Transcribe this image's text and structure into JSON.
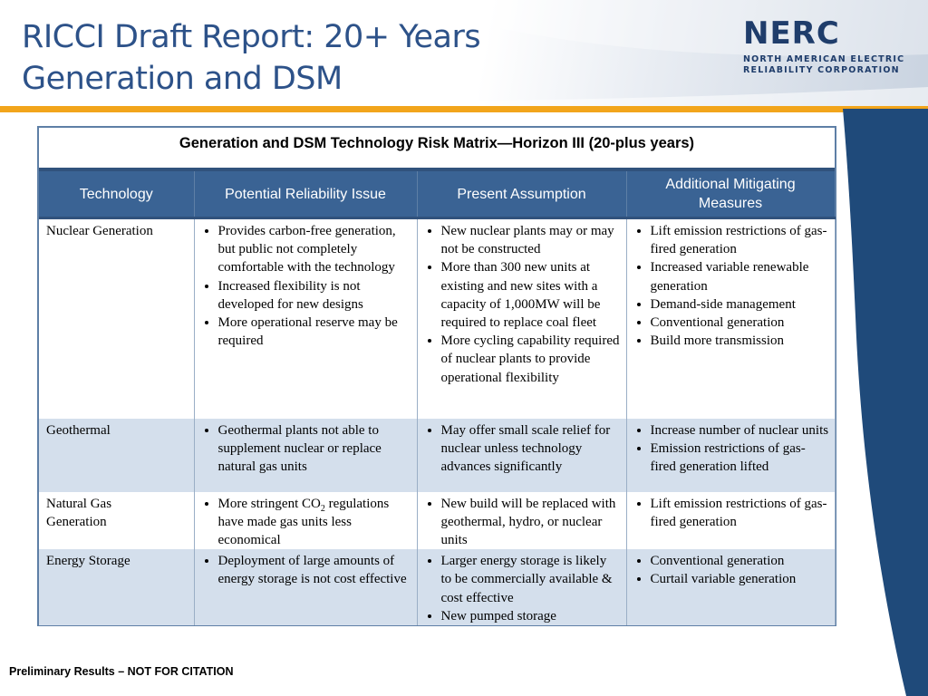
{
  "header": {
    "title_line1": "RICCI Draft Report: 20+ Years",
    "title_line2": "Generation and DSM",
    "logo_word": "NERC",
    "logo_line1": "NORTH AMERICAN ELECTRIC",
    "logo_line2": "RELIABILITY CORPORATION"
  },
  "colors": {
    "title": "#2d5289",
    "accent": "#f2a51b",
    "table_header": "#3a6394",
    "row_shade": "#d4dfec"
  },
  "matrix": {
    "title": "Generation and DSM Technology Risk Matrix—Horizon III (20-plus years)",
    "headers": [
      "Technology",
      "Potential Reliability Issue",
      "Present Assumption",
      "Additional Mitigating Measures"
    ],
    "rows": [
      {
        "technology": "Nuclear Generation",
        "issues": [
          "Provides carbon-free generation, but public not completely comfortable with the technology",
          "Increased flexibility is not developed for new designs",
          "More operational reserve may be required"
        ],
        "assumptions": [
          "New nuclear plants may or may not be constructed",
          "More than 300 new units at existing and new sites with a capacity of 1,000MW will be required to replace coal fleet",
          "More cycling capability required of nuclear plants to provide operational flexibility"
        ],
        "measures": [
          "Lift emission restrictions of gas-fired generation",
          "Increased variable renewable generation",
          "Demand-side management",
          "Conventional generation",
          "Build more transmission"
        ]
      },
      {
        "technology": "Geothermal",
        "issues": [
          "Geothermal plants not able to supplement nuclear or replace natural gas units"
        ],
        "assumptions": [
          "May offer small scale relief for nuclear unless technology advances significantly"
        ],
        "measures": [
          "Increase number of nuclear units",
          "Emission restrictions of gas-fired generation lifted"
        ]
      },
      {
        "technology_line1": "Natural Gas",
        "technology_line2": "Generation",
        "issue_prefix": "More stringent CO",
        "issue_subscript": "2",
        "issue_suffix": " regulations have made gas units less economical",
        "assumptions": [
          "New build will be replaced with geothermal, hydro, or nuclear units"
        ],
        "measures": [
          "Lift emission restrictions of gas-fired generation"
        ]
      },
      {
        "technology": "Energy Storage",
        "issues": [
          "Deployment of large amounts of energy storage is not cost effective"
        ],
        "assumptions": [
          "Larger energy storage is likely to be commercially available & cost effective",
          "New pumped storage"
        ],
        "measures": [
          "Conventional generation",
          "Curtail variable generation"
        ]
      }
    ]
  },
  "footer": {
    "text": "Preliminary Results – NOT FOR CITATION"
  }
}
